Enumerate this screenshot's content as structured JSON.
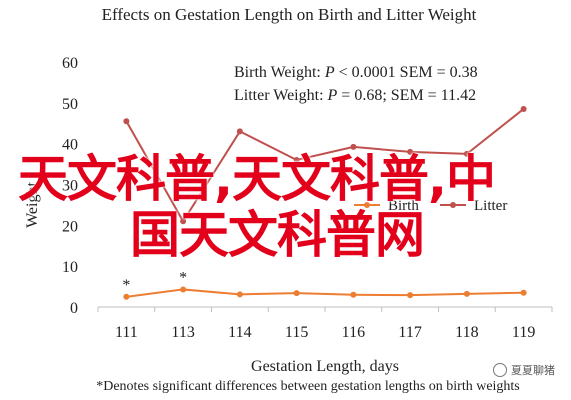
{
  "chart_data": {
    "type": "line",
    "title": "Effects on Gestation Length on Birth and Litter Weight",
    "xlabel": "Gestation Length, days",
    "ylabel": "Weight",
    "x": [
      111,
      113,
      114,
      115,
      116,
      117,
      118,
      119
    ],
    "ylim": [
      0,
      60
    ],
    "yticks": [
      0,
      10,
      20,
      30,
      40,
      50,
      60
    ],
    "grid": false,
    "legend_position": "center-right",
    "series": [
      {
        "name": "Birth",
        "color": "#ed7d31",
        "values": [
          2.5,
          4.3,
          3.1,
          3.4,
          3.0,
          2.9,
          3.2,
          3.5
        ]
      },
      {
        "name": "Litter",
        "color": "#c0504d",
        "values": [
          45.5,
          21,
          43,
          36,
          39.2,
          38,
          37.5,
          48.5
        ]
      }
    ],
    "markers": [
      {
        "x": 111,
        "label": "*"
      },
      {
        "x": 113,
        "label": "*"
      }
    ],
    "stats": [
      {
        "prefix": "Birth Weight: ",
        "var": "P",
        "suffix": " < 0.0001 SEM = 0.38"
      },
      {
        "prefix": "Litter Weight: ",
        "var": "P",
        "suffix": " = 0.68; SEM = 11.42"
      }
    ],
    "footnote": "*Denotes significant differences between gestation lengths on birth weights"
  },
  "watermark": {
    "line1": "天文科普,天文科普,中",
    "line2": "国天文科普网",
    "color": "#e3001b"
  },
  "logo": {
    "text": "夏夏聊猪"
  },
  "colors": {
    "axis": "#bfbfbf",
    "text": "#222222"
  }
}
